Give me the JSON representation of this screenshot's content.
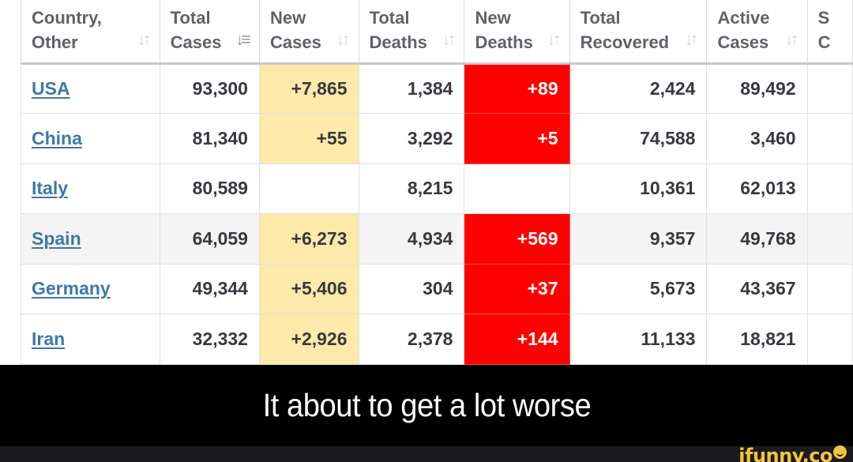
{
  "table": {
    "headers": [
      {
        "line1": "Country,",
        "line2": "Other",
        "sort_icon": "sort-both-icon",
        "sort_glyph": "⇅"
      },
      {
        "line1": "Total",
        "line2": "Cases",
        "sort_icon": "sort-descending-icon",
        "sort_glyph": "↓≡"
      },
      {
        "line1": "New",
        "line2": "Cases",
        "sort_icon": "sort-both-icon",
        "sort_glyph": "⇅"
      },
      {
        "line1": "Total",
        "line2": "Deaths",
        "sort_icon": "sort-both-icon",
        "sort_glyph": "⇅"
      },
      {
        "line1": "New",
        "line2": "Deaths",
        "sort_icon": "sort-both-icon",
        "sort_glyph": "⇅"
      },
      {
        "line1": "Total",
        "line2": "Recovered",
        "sort_icon": "sort-both-icon",
        "sort_glyph": "⇅"
      },
      {
        "line1": "Active",
        "line2": "Cases",
        "sort_icon": "sort-both-icon",
        "sort_glyph": "⇅"
      },
      {
        "line1": "S",
        "line2": "C",
        "sort_icon": "",
        "sort_glyph": ""
      }
    ],
    "rows": [
      {
        "country": "USA",
        "total_cases": "93,300",
        "new_cases": "+7,865",
        "total_deaths": "1,384",
        "new_deaths": "+89",
        "total_recovered": "2,424",
        "active_cases": "89,492"
      },
      {
        "country": "China",
        "total_cases": "81,340",
        "new_cases": "+55",
        "total_deaths": "3,292",
        "new_deaths": "+5",
        "total_recovered": "74,588",
        "active_cases": "3,460"
      },
      {
        "country": "Italy",
        "total_cases": "80,589",
        "new_cases": "",
        "total_deaths": "8,215",
        "new_deaths": "",
        "total_recovered": "10,361",
        "active_cases": "62,013"
      },
      {
        "country": "Spain",
        "total_cases": "64,059",
        "new_cases": "+6,273",
        "total_deaths": "4,934",
        "new_deaths": "+569",
        "total_recovered": "9,357",
        "active_cases": "49,768"
      },
      {
        "country": "Germany",
        "total_cases": "49,344",
        "new_cases": "+5,406",
        "total_deaths": "304",
        "new_deaths": "+37",
        "total_recovered": "5,673",
        "active_cases": "43,367"
      },
      {
        "country": "Iran",
        "total_cases": "32,332",
        "new_cases": "+2,926",
        "total_deaths": "2,378",
        "new_deaths": "+144",
        "total_recovered": "11,133",
        "active_cases": "18,821"
      }
    ],
    "colors": {
      "new_cases_highlight": "#fde9a9",
      "new_deaths_highlight": "#ff0000",
      "link": "#3f78aa",
      "alt_row": "#f4f4f4"
    }
  },
  "caption": {
    "text": "It about to get a lot worse"
  },
  "watermark": {
    "text": "ifunny.co",
    "color": "#f4c53c"
  }
}
